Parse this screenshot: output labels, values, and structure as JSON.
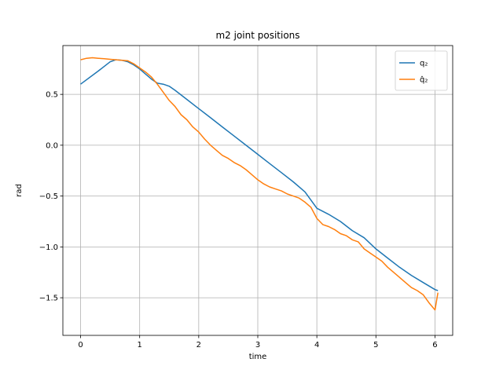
{
  "chart_data": {
    "type": "line",
    "title": "m2 joint positions",
    "xlabel": "time",
    "ylabel": "rad",
    "xlim": [
      -0.3,
      6.3
    ],
    "ylim": [
      -1.87,
      0.98
    ],
    "xticks": [
      0,
      1,
      2,
      3,
      4,
      5,
      6
    ],
    "yticks": [
      -1.5,
      -1.0,
      -0.5,
      0.0,
      0.5
    ],
    "ytick_labels": [
      "−1.5",
      "−1.0",
      "−0.5",
      "0.0",
      "0.5"
    ],
    "xtick_labels": [
      "0",
      "1",
      "2",
      "3",
      "4",
      "5",
      "6"
    ],
    "grid": true,
    "legend_position": "top-right",
    "series": [
      {
        "name": "q₂",
        "color": "#1f77b4",
        "x": [
          0.0,
          0.3,
          0.5,
          0.6,
          0.7,
          0.8,
          0.9,
          1.0,
          1.1,
          1.2,
          1.3,
          1.4,
          1.5,
          1.6,
          1.8,
          2.0,
          2.2,
          2.4,
          2.6,
          2.8,
          3.0,
          3.2,
          3.4,
          3.6,
          3.8,
          4.0,
          4.2,
          4.4,
          4.6,
          4.8,
          5.0,
          5.2,
          5.4,
          5.6,
          5.8,
          6.0,
          6.05
        ],
        "y": [
          0.6,
          0.73,
          0.82,
          0.84,
          0.835,
          0.82,
          0.79,
          0.75,
          0.7,
          0.65,
          0.61,
          0.6,
          0.58,
          0.54,
          0.45,
          0.36,
          0.27,
          0.18,
          0.09,
          0.0,
          -0.09,
          -0.18,
          -0.27,
          -0.36,
          -0.46,
          -0.62,
          -0.68,
          -0.75,
          -0.84,
          -0.91,
          -1.02,
          -1.11,
          -1.2,
          -1.28,
          -1.35,
          -1.42,
          -1.43
        ]
      },
      {
        "name": "q̂₂",
        "color": "#ff7f0e",
        "x": [
          0.0,
          0.1,
          0.2,
          0.3,
          0.4,
          0.5,
          0.6,
          0.7,
          0.8,
          0.9,
          1.0,
          1.1,
          1.2,
          1.3,
          1.4,
          1.5,
          1.6,
          1.7,
          1.8,
          1.9,
          2.0,
          2.1,
          2.2,
          2.3,
          2.4,
          2.5,
          2.6,
          2.7,
          2.8,
          2.9,
          3.0,
          3.1,
          3.2,
          3.3,
          3.4,
          3.5,
          3.6,
          3.7,
          3.8,
          3.9,
          4.0,
          4.1,
          4.2,
          4.3,
          4.4,
          4.5,
          4.6,
          4.7,
          4.8,
          4.9,
          5.0,
          5.1,
          5.2,
          5.3,
          5.4,
          5.5,
          5.6,
          5.7,
          5.8,
          5.9,
          6.0,
          6.05
        ],
        "y": [
          0.84,
          0.855,
          0.86,
          0.855,
          0.85,
          0.845,
          0.84,
          0.835,
          0.83,
          0.8,
          0.76,
          0.72,
          0.67,
          0.6,
          0.52,
          0.44,
          0.38,
          0.3,
          0.25,
          0.18,
          0.13,
          0.06,
          0.0,
          -0.05,
          -0.1,
          -0.13,
          -0.17,
          -0.2,
          -0.24,
          -0.29,
          -0.34,
          -0.38,
          -0.41,
          -0.43,
          -0.45,
          -0.48,
          -0.5,
          -0.52,
          -0.56,
          -0.61,
          -0.72,
          -0.78,
          -0.8,
          -0.83,
          -0.87,
          -0.89,
          -0.93,
          -0.95,
          -1.02,
          -1.06,
          -1.1,
          -1.14,
          -1.2,
          -1.25,
          -1.3,
          -1.35,
          -1.4,
          -1.43,
          -1.47,
          -1.55,
          -1.62,
          -1.45
        ]
      }
    ]
  }
}
